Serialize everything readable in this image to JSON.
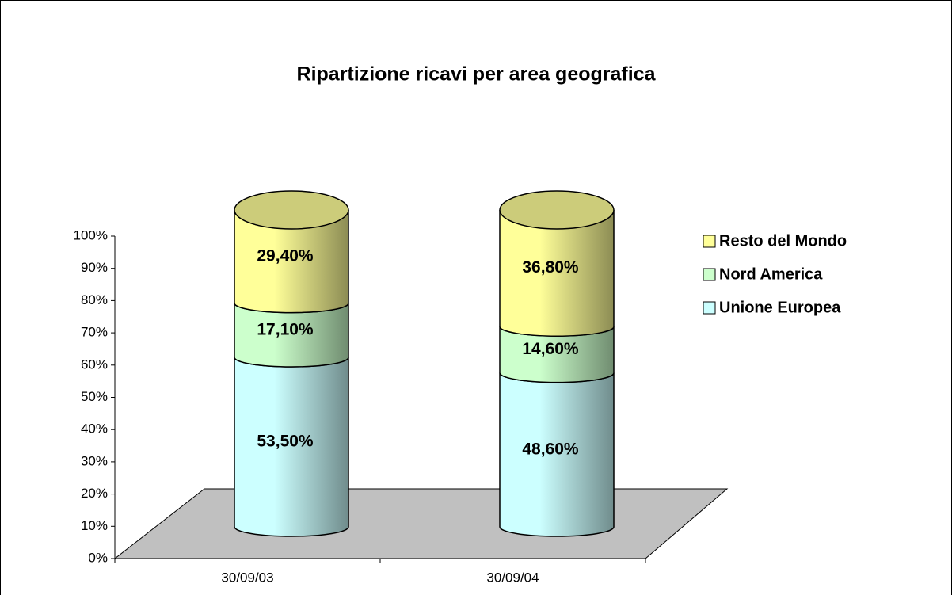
{
  "chart_data": {
    "type": "stacked-cylinder",
    "title": "Ripartizione ricavi per area geografica",
    "categories": [
      "30/09/03",
      "30/09/04"
    ],
    "series": [
      {
        "name": "Unione Europea",
        "color": "#ccffff",
        "values": [
          53.5,
          48.6
        ],
        "value_labels": [
          "53,50%",
          "48,60%"
        ]
      },
      {
        "name": "Nord America",
        "color": "#ccffcc",
        "values": [
          17.1,
          14.6
        ],
        "value_labels": [
          "17,10%",
          "14,60%"
        ]
      },
      {
        "name": "Resto del Mondo",
        "color": "#ffff99",
        "values": [
          29.4,
          36.8
        ],
        "value_labels": [
          "29,40%",
          "36,80%"
        ]
      }
    ],
    "ylim": [
      0,
      100
    ],
    "yticks": [
      {
        "value": 0,
        "label": "0%"
      },
      {
        "value": 10,
        "label": "10%"
      },
      {
        "value": 20,
        "label": "20%"
      },
      {
        "value": 30,
        "label": "30%"
      },
      {
        "value": 40,
        "label": "40%"
      },
      {
        "value": 50,
        "label": "50%"
      },
      {
        "value": 60,
        "label": "60%"
      },
      {
        "value": 70,
        "label": "70%"
      },
      {
        "value": 80,
        "label": "80%"
      },
      {
        "value": 90,
        "label": "90%"
      },
      {
        "value": 100,
        "label": "100%"
      }
    ],
    "grid": false,
    "legend": "right"
  }
}
